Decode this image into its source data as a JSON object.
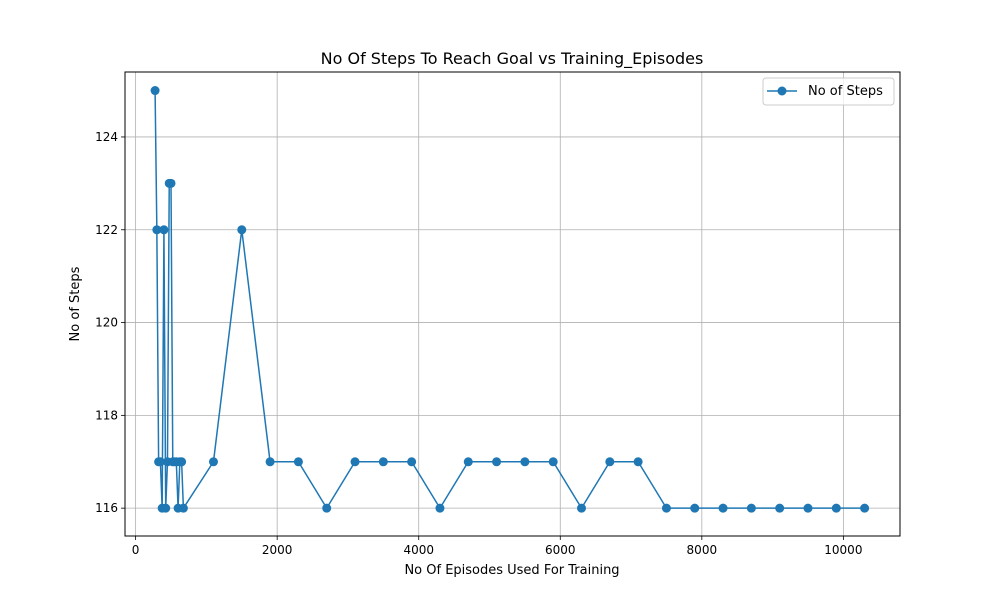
{
  "chart_data": {
    "type": "line",
    "title": "No Of Steps To Reach Goal vs Training_Episodes",
    "xlabel": "No Of Episodes Used For Training",
    "ylabel": "No of Steps",
    "xlim": [
      -150,
      10800
    ],
    "ylim": [
      115.4,
      125.4
    ],
    "xticks": [
      0,
      2000,
      4000,
      6000,
      8000,
      10000
    ],
    "yticks": [
      116,
      118,
      120,
      122,
      124
    ],
    "grid": true,
    "legend_position": "top-right",
    "color": "#1f77b4",
    "series": [
      {
        "name": "No of Steps",
        "x": [
          275,
          300,
          325,
          350,
          375,
          400,
          425,
          450,
          475,
          500,
          525,
          550,
          575,
          600,
          625,
          650,
          675,
          1100,
          1500,
          1900,
          2300,
          2700,
          3100,
          3500,
          3900,
          4300,
          4700,
          5100,
          5500,
          5900,
          6300,
          6700,
          7100,
          7500,
          7900,
          8300,
          8700,
          9100,
          9500,
          9900,
          10300
        ],
        "y": [
          125,
          122,
          117,
          117,
          116,
          122,
          116,
          117,
          123,
          123,
          117,
          117,
          117,
          116,
          117,
          117,
          116,
          117,
          122,
          117,
          117,
          116,
          117,
          117,
          117,
          116,
          117,
          117,
          117,
          117,
          116,
          117,
          117,
          116,
          116,
          116,
          116,
          116,
          116,
          116,
          116
        ]
      }
    ]
  }
}
